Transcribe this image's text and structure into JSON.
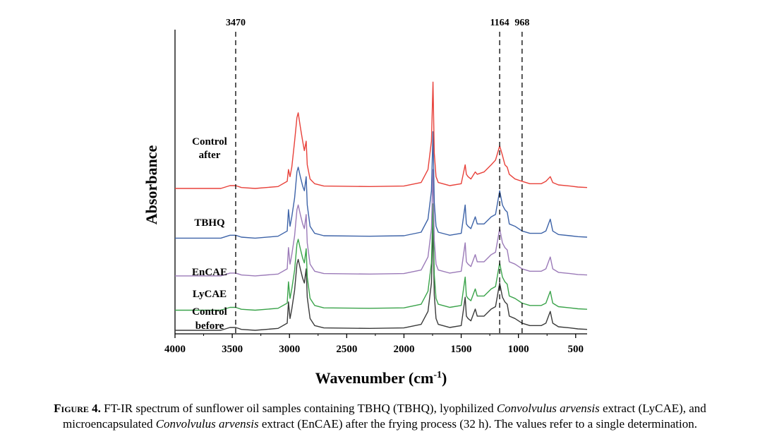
{
  "chart_data": {
    "type": "line",
    "title": "",
    "xlabel": "Wavenumber (cm",
    "xlabel_superscript": "-1",
    "xlabel_close": ")",
    "ylabel": "Absorbance",
    "xlim": [
      4000,
      400
    ],
    "x_reversed": true,
    "y_ticks_shown": false,
    "grid": false,
    "x_ticks": [
      4000,
      3500,
      3000,
      2500,
      2000,
      1500,
      1000,
      500
    ],
    "x_tick_labels": [
      "4000",
      "3500",
      "3000",
      "2500",
      "2000",
      "1500",
      "1000",
      "500"
    ],
    "reference_lines": [
      {
        "x": 3470,
        "label": "3470"
      },
      {
        "x": 1164,
        "label": "1164"
      },
      {
        "x": 968,
        "label": "968"
      }
    ],
    "series": [
      {
        "name": "Control before",
        "label_lines": [
          "Control",
          "before"
        ],
        "color": "#3a3a3a",
        "offset": 0,
        "points": [
          [
            4000,
            0
          ],
          [
            3600,
            0
          ],
          [
            3520,
            0.012
          ],
          [
            3470,
            0.012
          ],
          [
            3420,
            0.004
          ],
          [
            3300,
            0
          ],
          [
            3100,
            0.008
          ],
          [
            3020,
            0.03
          ],
          [
            3009,
            0.12
          ],
          [
            2995,
            0.05
          ],
          [
            2980,
            0.09
          ],
          [
            2955,
            0.17
          ],
          [
            2935,
            0.28
          ],
          [
            2924,
            0.3
          ],
          [
            2905,
            0.26
          ],
          [
            2885,
            0.22
          ],
          [
            2870,
            0.2
          ],
          [
            2854,
            0.26
          ],
          [
            2845,
            0.14
          ],
          [
            2820,
            0.05
          ],
          [
            2780,
            0.02
          ],
          [
            2700,
            0.01
          ],
          [
            2300,
            0.008
          ],
          [
            2000,
            0.01
          ],
          [
            1850,
            0.025
          ],
          [
            1790,
            0.08
          ],
          [
            1760,
            0.2
          ],
          [
            1746,
            0.45
          ],
          [
            1735,
            0.15
          ],
          [
            1720,
            0.05
          ],
          [
            1700,
            0.025
          ],
          [
            1600,
            0.012
          ],
          [
            1500,
            0.02
          ],
          [
            1465,
            0.14
          ],
          [
            1455,
            0.06
          ],
          [
            1440,
            0.05
          ],
          [
            1415,
            0.04
          ],
          [
            1377,
            0.09
          ],
          [
            1360,
            0.06
          ],
          [
            1300,
            0.06
          ],
          [
            1238,
            0.09
          ],
          [
            1200,
            0.1
          ],
          [
            1164,
            0.2
          ],
          [
            1140,
            0.14
          ],
          [
            1118,
            0.12
          ],
          [
            1098,
            0.11
          ],
          [
            1080,
            0.06
          ],
          [
            1030,
            0.05
          ],
          [
            968,
            0.03
          ],
          [
            900,
            0.02
          ],
          [
            800,
            0.02
          ],
          [
            760,
            0.03
          ],
          [
            722,
            0.08
          ],
          [
            700,
            0.03
          ],
          [
            650,
            0.015
          ],
          [
            550,
            0.01
          ],
          [
            480,
            0.006
          ],
          [
            400,
            0.004
          ]
        ]
      },
      {
        "name": "LyCAE",
        "label_lines": [
          "LyCAE"
        ],
        "color": "#3aa34a",
        "offset": 0.085,
        "points": [
          [
            4000,
            0
          ],
          [
            3600,
            0
          ],
          [
            3520,
            0.012
          ],
          [
            3470,
            0.012
          ],
          [
            3420,
            0.004
          ],
          [
            3300,
            0
          ],
          [
            3100,
            0.008
          ],
          [
            3020,
            0.03
          ],
          [
            3009,
            0.12
          ],
          [
            2995,
            0.05
          ],
          [
            2980,
            0.09
          ],
          [
            2955,
            0.17
          ],
          [
            2935,
            0.28
          ],
          [
            2924,
            0.3
          ],
          [
            2905,
            0.26
          ],
          [
            2885,
            0.22
          ],
          [
            2870,
            0.2
          ],
          [
            2854,
            0.26
          ],
          [
            2845,
            0.14
          ],
          [
            2820,
            0.05
          ],
          [
            2780,
            0.02
          ],
          [
            2700,
            0.01
          ],
          [
            2300,
            0.008
          ],
          [
            2000,
            0.01
          ],
          [
            1850,
            0.025
          ],
          [
            1790,
            0.08
          ],
          [
            1760,
            0.2
          ],
          [
            1746,
            0.45
          ],
          [
            1735,
            0.15
          ],
          [
            1720,
            0.05
          ],
          [
            1700,
            0.025
          ],
          [
            1600,
            0.012
          ],
          [
            1500,
            0.02
          ],
          [
            1465,
            0.14
          ],
          [
            1455,
            0.06
          ],
          [
            1440,
            0.05
          ],
          [
            1415,
            0.04
          ],
          [
            1377,
            0.09
          ],
          [
            1360,
            0.06
          ],
          [
            1300,
            0.06
          ],
          [
            1238,
            0.09
          ],
          [
            1200,
            0.1
          ],
          [
            1164,
            0.2
          ],
          [
            1140,
            0.14
          ],
          [
            1118,
            0.12
          ],
          [
            1098,
            0.11
          ],
          [
            1080,
            0.06
          ],
          [
            1030,
            0.05
          ],
          [
            968,
            0.03
          ],
          [
            900,
            0.02
          ],
          [
            800,
            0.02
          ],
          [
            760,
            0.03
          ],
          [
            722,
            0.08
          ],
          [
            700,
            0.03
          ],
          [
            650,
            0.015
          ],
          [
            550,
            0.01
          ],
          [
            480,
            0.006
          ],
          [
            400,
            0.004
          ]
        ]
      },
      {
        "name": "EnCAE",
        "label_lines": [
          "EnCAE"
        ],
        "color": "#9b7ab8",
        "offset": 0.23,
        "points": [
          [
            4000,
            0
          ],
          [
            3600,
            0
          ],
          [
            3520,
            0.012
          ],
          [
            3470,
            0.012
          ],
          [
            3420,
            0.004
          ],
          [
            3300,
            0
          ],
          [
            3100,
            0.008
          ],
          [
            3020,
            0.03
          ],
          [
            3009,
            0.12
          ],
          [
            2995,
            0.05
          ],
          [
            2980,
            0.09
          ],
          [
            2955,
            0.17
          ],
          [
            2935,
            0.28
          ],
          [
            2924,
            0.3
          ],
          [
            2905,
            0.26
          ],
          [
            2885,
            0.22
          ],
          [
            2870,
            0.2
          ],
          [
            2854,
            0.26
          ],
          [
            2845,
            0.14
          ],
          [
            2820,
            0.05
          ],
          [
            2780,
            0.02
          ],
          [
            2700,
            0.01
          ],
          [
            2300,
            0.008
          ],
          [
            2000,
            0.01
          ],
          [
            1850,
            0.025
          ],
          [
            1790,
            0.08
          ],
          [
            1760,
            0.2
          ],
          [
            1746,
            0.45
          ],
          [
            1735,
            0.15
          ],
          [
            1720,
            0.05
          ],
          [
            1700,
            0.025
          ],
          [
            1600,
            0.012
          ],
          [
            1500,
            0.02
          ],
          [
            1465,
            0.14
          ],
          [
            1455,
            0.06
          ],
          [
            1440,
            0.05
          ],
          [
            1415,
            0.04
          ],
          [
            1377,
            0.09
          ],
          [
            1360,
            0.06
          ],
          [
            1300,
            0.06
          ],
          [
            1238,
            0.09
          ],
          [
            1200,
            0.1
          ],
          [
            1164,
            0.2
          ],
          [
            1140,
            0.14
          ],
          [
            1118,
            0.12
          ],
          [
            1098,
            0.11
          ],
          [
            1080,
            0.06
          ],
          [
            1030,
            0.05
          ],
          [
            968,
            0.03
          ],
          [
            900,
            0.02
          ],
          [
            800,
            0.02
          ],
          [
            760,
            0.03
          ],
          [
            722,
            0.08
          ],
          [
            700,
            0.03
          ],
          [
            650,
            0.015
          ],
          [
            550,
            0.01
          ],
          [
            480,
            0.006
          ],
          [
            400,
            0.004
          ]
        ]
      },
      {
        "name": "TBHQ",
        "label_lines": [
          "TBHQ"
        ],
        "color": "#3d63a8",
        "offset": 0.39,
        "points": [
          [
            4000,
            0
          ],
          [
            3600,
            0
          ],
          [
            3520,
            0.012
          ],
          [
            3470,
            0.012
          ],
          [
            3420,
            0.004
          ],
          [
            3300,
            0
          ],
          [
            3100,
            0.008
          ],
          [
            3020,
            0.03
          ],
          [
            3009,
            0.12
          ],
          [
            2995,
            0.05
          ],
          [
            2980,
            0.09
          ],
          [
            2955,
            0.17
          ],
          [
            2935,
            0.28
          ],
          [
            2924,
            0.3
          ],
          [
            2905,
            0.26
          ],
          [
            2885,
            0.22
          ],
          [
            2870,
            0.2
          ],
          [
            2854,
            0.26
          ],
          [
            2845,
            0.14
          ],
          [
            2820,
            0.05
          ],
          [
            2780,
            0.02
          ],
          [
            2700,
            0.01
          ],
          [
            2300,
            0.008
          ],
          [
            2000,
            0.01
          ],
          [
            1850,
            0.025
          ],
          [
            1790,
            0.08
          ],
          [
            1760,
            0.2
          ],
          [
            1746,
            0.45
          ],
          [
            1735,
            0.15
          ],
          [
            1720,
            0.05
          ],
          [
            1700,
            0.025
          ],
          [
            1600,
            0.012
          ],
          [
            1500,
            0.02
          ],
          [
            1465,
            0.14
          ],
          [
            1455,
            0.06
          ],
          [
            1440,
            0.05
          ],
          [
            1415,
            0.04
          ],
          [
            1377,
            0.09
          ],
          [
            1360,
            0.06
          ],
          [
            1300,
            0.06
          ],
          [
            1238,
            0.09
          ],
          [
            1200,
            0.1
          ],
          [
            1164,
            0.2
          ],
          [
            1140,
            0.14
          ],
          [
            1118,
            0.12
          ],
          [
            1098,
            0.11
          ],
          [
            1080,
            0.06
          ],
          [
            1030,
            0.05
          ],
          [
            968,
            0.03
          ],
          [
            900,
            0.02
          ],
          [
            800,
            0.02
          ],
          [
            760,
            0.03
          ],
          [
            722,
            0.08
          ],
          [
            700,
            0.03
          ],
          [
            650,
            0.015
          ],
          [
            550,
            0.01
          ],
          [
            480,
            0.006
          ],
          [
            400,
            0.004
          ]
        ]
      },
      {
        "name": "Control after",
        "label_lines": [
          "Control",
          "after"
        ],
        "color": "#e8413a",
        "offset": 0.6,
        "points": [
          [
            4000,
            0
          ],
          [
            3600,
            0
          ],
          [
            3520,
            0.012
          ],
          [
            3470,
            0.012
          ],
          [
            3420,
            0.004
          ],
          [
            3300,
            0
          ],
          [
            3100,
            0.008
          ],
          [
            3020,
            0.03
          ],
          [
            3009,
            0.08
          ],
          [
            2995,
            0.05
          ],
          [
            2980,
            0.09
          ],
          [
            2955,
            0.2
          ],
          [
            2935,
            0.3
          ],
          [
            2924,
            0.32
          ],
          [
            2905,
            0.26
          ],
          [
            2885,
            0.2
          ],
          [
            2870,
            0.16
          ],
          [
            2854,
            0.2
          ],
          [
            2845,
            0.1
          ],
          [
            2820,
            0.04
          ],
          [
            2780,
            0.02
          ],
          [
            2700,
            0.01
          ],
          [
            2300,
            0.008
          ],
          [
            2000,
            0.01
          ],
          [
            1850,
            0.025
          ],
          [
            1790,
            0.08
          ],
          [
            1760,
            0.2
          ],
          [
            1746,
            0.45
          ],
          [
            1735,
            0.15
          ],
          [
            1720,
            0.05
          ],
          [
            1700,
            0.025
          ],
          [
            1600,
            0.012
          ],
          [
            1500,
            0.02
          ],
          [
            1465,
            0.1
          ],
          [
            1455,
            0.06
          ],
          [
            1440,
            0.05
          ],
          [
            1415,
            0.04
          ],
          [
            1377,
            0.07
          ],
          [
            1360,
            0.06
          ],
          [
            1300,
            0.07
          ],
          [
            1238,
            0.1
          ],
          [
            1200,
            0.12
          ],
          [
            1164,
            0.18
          ],
          [
            1140,
            0.14
          ],
          [
            1118,
            0.1
          ],
          [
            1098,
            0.09
          ],
          [
            1080,
            0.06
          ],
          [
            1030,
            0.04
          ],
          [
            968,
            0.03
          ],
          [
            900,
            0.02
          ],
          [
            800,
            0.02
          ],
          [
            760,
            0.03
          ],
          [
            722,
            0.05
          ],
          [
            700,
            0.025
          ],
          [
            650,
            0.015
          ],
          [
            550,
            0.01
          ],
          [
            480,
            0.006
          ],
          [
            400,
            0.004
          ]
        ]
      }
    ]
  },
  "caption": {
    "label": "Figure 4.",
    "text_1": " FT-IR spectrum of sunflower oil samples containing TBHQ (TBHQ), lyophilized ",
    "italic_1": "Convolvulus arvensis",
    "text_2": " extract (LyCAE), and",
    "text_3": "microencapsulated ",
    "italic_2": "Convolvulus arvensis",
    "text_4": " extract (EnCAE) after the frying process (32 h). The values refer to a single determination."
  }
}
